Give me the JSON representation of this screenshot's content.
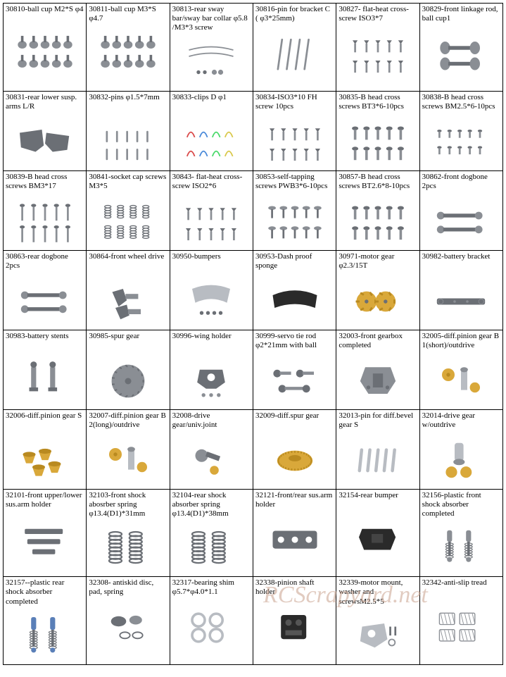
{
  "watermark": "RCScrapyard.net",
  "colors": {
    "steel": "#8a8e94",
    "steel_dark": "#6b6f75",
    "gold": "#d9a83a",
    "gold_dark": "#b98a20",
    "black": "#2a2a2a",
    "blue": "#5a7fb8",
    "gray_light": "#b8bcc2"
  },
  "cells": [
    {
      "label": "30810-ball cup M2*S φ4",
      "icon": "ballcups"
    },
    {
      "label": "30811-ball cup M3*S φ4.7",
      "icon": "ballcups"
    },
    {
      "label": "30813-rear sway bar/sway bar collar φ5.8 /M3*3 screw",
      "icon": "swaybar"
    },
    {
      "label": "30816-pin for bracket C ( φ3*25mm)",
      "icon": "pins_long"
    },
    {
      "label": "30827- flat-heat cross-screw ISO3*7",
      "icon": "screws_flat"
    },
    {
      "label": "30829-front linkage rod, ball cup1",
      "icon": "linkage_rod"
    },
    {
      "label": "30831-rear lower susp. arms L/R",
      "icon": "susp_arms"
    },
    {
      "label": "30832-pins φ1.5*7mm",
      "icon": "pins_short"
    },
    {
      "label": "30833-clips D φ1",
      "icon": "clips"
    },
    {
      "label": "30834-ISO3*10 FH screw 10pcs",
      "icon": "screws_flat"
    },
    {
      "label": "30835-B head cross screws BT3*6-10pcs",
      "icon": "screws_pan"
    },
    {
      "label": "30838-B head cross screws BM2.5*6-10pcs",
      "icon": "screws_pan_small"
    },
    {
      "label": "30839-B head cross screws BM3*17",
      "icon": "screws_long"
    },
    {
      "label": "30841-socket cap screws M3*5",
      "icon": "springs_small"
    },
    {
      "label": "30843- flat-heat cross-screw ISO2*6",
      "icon": "screws_flat"
    },
    {
      "label": "30853-self-tapping screws PWB3*6-10pcs",
      "icon": "screws_washer"
    },
    {
      "label": "30857-B head cross screws BT2.6*8-10pcs",
      "icon": "screws_pan"
    },
    {
      "label": "30862-front dogbone 2pcs",
      "icon": "dogbone"
    },
    {
      "label": "30863-rear dogbone 2pcs",
      "icon": "dogbone"
    },
    {
      "label": "30864-front wheel drive",
      "icon": "wheel_drive"
    },
    {
      "label": "30950-bumpers",
      "icon": "bumper_front"
    },
    {
      "label": "30953-Dash proof sponge",
      "icon": "sponge"
    },
    {
      "label": "30971-motor gear φ2.3/15T",
      "icon": "motor_gears"
    },
    {
      "label": "30982-battery bracket",
      "icon": "battery_bracket"
    },
    {
      "label": "30983-battery stents",
      "icon": "battery_stents"
    },
    {
      "label": "30985-spur gear",
      "icon": "spur_gear"
    },
    {
      "label": "30996-wing holder",
      "icon": "wing_holder"
    },
    {
      "label": "30999-servo tie rod φ2*21mm with ball",
      "icon": "servo_tie"
    },
    {
      "label": "32003-front gearbox completed",
      "icon": "gearbox"
    },
    {
      "label": "32005-diff.pinion gear B 1(short)/outdrive",
      "icon": "pinion_out"
    },
    {
      "label": "32006-diff.pinion gear S",
      "icon": "bevel_gears"
    },
    {
      "label": "32007-diff.pinion gear B 2(long)/outdrive",
      "icon": "pinion_out"
    },
    {
      "label": "32008-drive gear/univ.joint",
      "icon": "univ_joint"
    },
    {
      "label": "32009-diff.spur gear",
      "icon": "diff_spur"
    },
    {
      "label": "32013-pin for diff.bevel gear S",
      "icon": "pins_med"
    },
    {
      "label": "32014-drive gear w/outdrive",
      "icon": "drive_gear_out"
    },
    {
      "label": "32101-front upper/lower sus.arm holder",
      "icon": "arm_holder_f"
    },
    {
      "label": "32103-front shock abosrber spring φ13.4(D1)*31mm",
      "icon": "springs"
    },
    {
      "label": "32104-rear shock absorber spring φ13.4(D1)*38mm",
      "icon": "springs"
    },
    {
      "label": "32121-front/rear sus.arm holder",
      "icon": "arm_holder_r"
    },
    {
      "label": "32154-rear bumper",
      "icon": "rear_bumper"
    },
    {
      "label": "32156-plastic front shock absorber completed",
      "icon": "shocks_gray"
    },
    {
      "label": "32157--plastic rear shock absorber completed",
      "icon": "shocks_blue"
    },
    {
      "label": "32308- antiskid disc, pad, spring",
      "icon": "antiskid"
    },
    {
      "label": "32317-bearing shim φ5.7*φ4.0*1.1",
      "icon": "shims"
    },
    {
      "label": "32338-pinion shaft holder",
      "icon": "shaft_holder"
    },
    {
      "label": "32339-motor mount, washer and screwsM2.5*5",
      "icon": "motor_mount"
    },
    {
      "label": "32342-anti-slip tread",
      "icon": "tread"
    }
  ]
}
